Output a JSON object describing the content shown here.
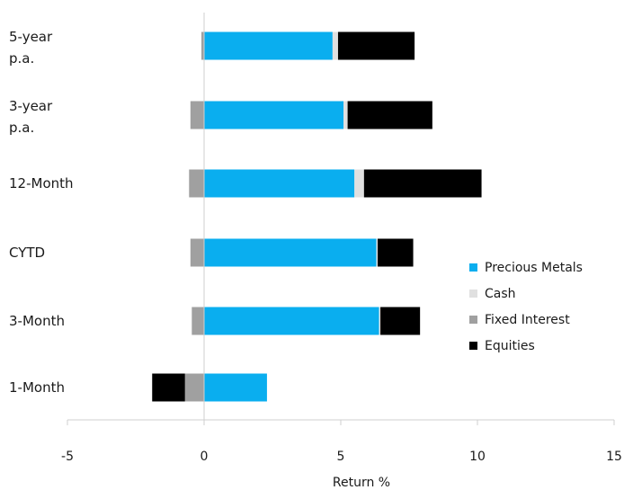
{
  "chart_data": {
    "type": "bar",
    "orientation": "horizontal",
    "stacked": true,
    "title": "",
    "xlabel": "Return %",
    "ylabel": "",
    "xlim": [
      -5,
      15
    ],
    "xticks": [
      -5,
      0,
      5,
      10,
      15
    ],
    "grid": false,
    "legend_position": "right",
    "categories": [
      [
        "5-year",
        "p.a."
      ],
      [
        "3-year",
        "p.a."
      ],
      [
        "12-Month"
      ],
      [
        "CYTD"
      ],
      [
        "3-Month"
      ],
      [
        "1-Month"
      ]
    ],
    "series": [
      {
        "name": "Precious Metals",
        "color": "#0aaeef",
        "values": [
          4.7,
          5.1,
          5.5,
          6.3,
          6.4,
          2.3
        ]
      },
      {
        "name": "Cash",
        "color": "#e0e0e0",
        "values": [
          0.2,
          0.15,
          0.35,
          0.05,
          0.05,
          0.0
        ]
      },
      {
        "name": "Fixed Interest",
        "color": "#a0a0a0",
        "values": [
          -0.1,
          -0.5,
          -0.55,
          -0.5,
          -0.45,
          -0.7
        ]
      },
      {
        "name": "Equities",
        "color": "#000000",
        "values": [
          2.8,
          3.1,
          4.3,
          1.3,
          1.45,
          -1.2
        ]
      }
    ],
    "legend_order": [
      "Precious Metals",
      "Cash",
      "Fixed Interest",
      "Equities"
    ]
  }
}
